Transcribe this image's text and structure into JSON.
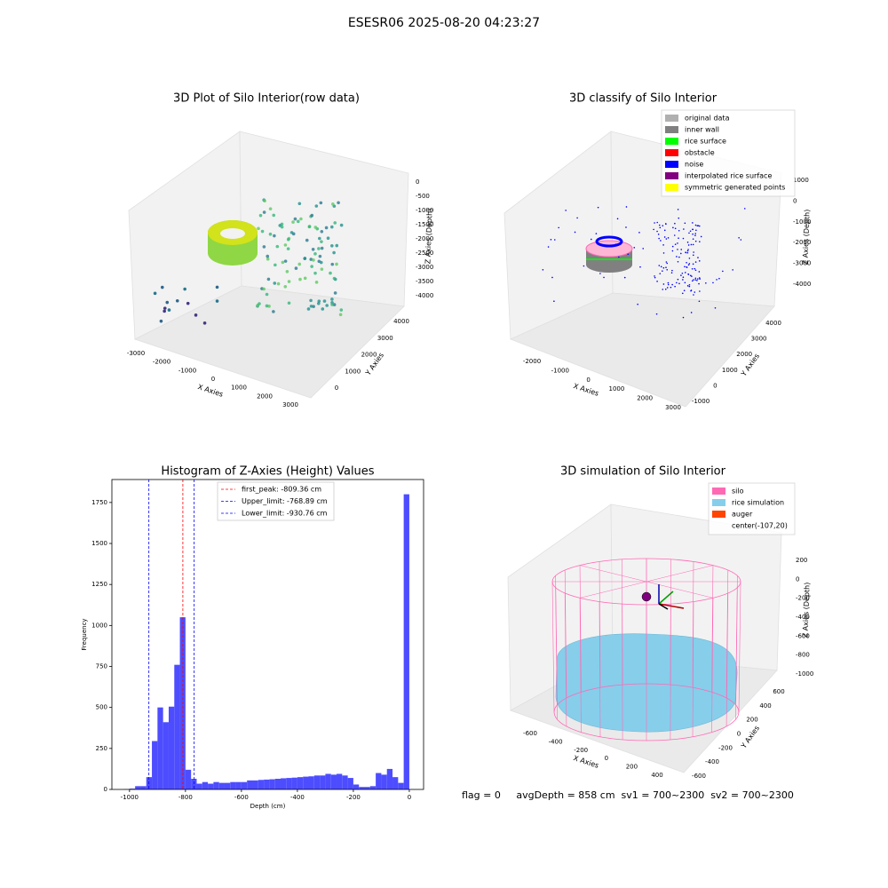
{
  "title": "ESESR06 2025-08-20 04:23:27",
  "footer": "flag = 0     avgDepth = 858 cm  sv1 = 700~2300  sv2 = 700~2300",
  "chart_data": [
    {
      "type": "scatter3d",
      "title": "3D Plot of Silo Interior(row data)",
      "xlabel": "X Axies",
      "ylabel": "Y Axies",
      "zlabel": "Z Axies (Depth)",
      "xticks": [
        -3000,
        -2000,
        -1000,
        0,
        1000,
        2000,
        3000
      ],
      "yticks": [
        0,
        1000,
        2000,
        3000,
        4000
      ],
      "zticks": [
        0,
        -500,
        -1000,
        -1500,
        -2000,
        -2500,
        -3000,
        -3500,
        -4000
      ]
    },
    {
      "type": "scatter3d",
      "title": "3D classify of Silo Interior",
      "xlabel": "X Axies",
      "ylabel": "Y Axies",
      "zlabel": "Z Axies (Depth)",
      "xticks": [
        -2000,
        -1000,
        0,
        1000,
        2000,
        3000
      ],
      "yticks": [
        -1000,
        0,
        1000,
        2000,
        3000,
        4000
      ],
      "zticks": [
        1000,
        0,
        -1000,
        -2000,
        -3000,
        -4000
      ],
      "series": [
        {
          "name": "original data",
          "color": "#b0b0b0"
        },
        {
          "name": "inner wall",
          "color": "#808080"
        },
        {
          "name": "rice surface",
          "color": "#00ff00"
        },
        {
          "name": "obstacle",
          "color": "#ff0000"
        },
        {
          "name": "noise",
          "color": "#0000ff"
        },
        {
          "name": "interpolated rice surface",
          "color": "#800080"
        },
        {
          "name": "symmetric generated points",
          "color": "#ffff00"
        }
      ]
    },
    {
      "type": "histogram",
      "title": "Histogram of Z-Axies (Height) Values",
      "xlabel": "Depth (cm)",
      "ylabel": "Frequency",
      "color": "#4d4dff",
      "bins": [
        -1020,
        -1000,
        -980,
        -960,
        -940,
        -920,
        -900,
        -880,
        -860,
        -840,
        -820,
        -800,
        -780,
        -760,
        -740,
        -720,
        -700,
        -680,
        -660,
        -640,
        -620,
        -600,
        -580,
        -560,
        -540,
        -520,
        -500,
        -480,
        -460,
        -440,
        -420,
        -400,
        -380,
        -360,
        -340,
        -320,
        -300,
        -280,
        -260,
        -240,
        -220,
        -200,
        -180,
        -160,
        -140,
        -120,
        -100,
        -80,
        -60,
        -40,
        -20,
        0
      ],
      "values": [
        2,
        5,
        20,
        20,
        75,
        295,
        500,
        410,
        505,
        760,
        1050,
        120,
        65,
        35,
        45,
        35,
        45,
        40,
        40,
        45,
        45,
        45,
        55,
        55,
        58,
        60,
        62,
        65,
        68,
        70,
        72,
        75,
        78,
        80,
        85,
        85,
        95,
        90,
        95,
        85,
        70,
        30,
        15,
        15,
        20,
        100,
        90,
        125,
        75,
        40,
        1800
      ],
      "xlim": [
        -1063,
        51
      ],
      "ylim": [
        0,
        1890
      ],
      "xticks": [
        -1000,
        -800,
        -600,
        -400,
        -200,
        0
      ],
      "yticks": [
        0,
        250,
        500,
        750,
        1000,
        1250,
        1500,
        1750
      ],
      "legend": "upper center",
      "lines": [
        {
          "name": "first_peak: -809.36 cm",
          "value": -809.36,
          "color": "#ff0000"
        },
        {
          "name": "Upper_limit: -768.89 cm",
          "value": -768.89,
          "color": "#0000ff"
        },
        {
          "name": "Lower_limit: -930.76 cm",
          "value": -930.76,
          "color": "#0000ff"
        }
      ]
    },
    {
      "type": "surface3d",
      "title": "3D simulation of Silo Interior",
      "xlabel": "X Axies",
      "ylabel": "Y Axies",
      "zlabel": "Z Axies (Depth)",
      "xticks": [
        -600,
        -400,
        -200,
        0,
        200,
        400
      ],
      "yticks": [
        600,
        400,
        200,
        0,
        -200,
        -400,
        -600
      ],
      "zticks": [
        200,
        0,
        -200,
        -400,
        -600,
        -800,
        -1000
      ],
      "series": [
        {
          "name": "silo",
          "color": "#ff69b4"
        },
        {
          "name": "rice simulation",
          "color": "#87ceeb"
        },
        {
          "name": "auger",
          "color": "#ff4500"
        },
        {
          "name": "center(-107,20)",
          "color": null
        }
      ]
    }
  ]
}
